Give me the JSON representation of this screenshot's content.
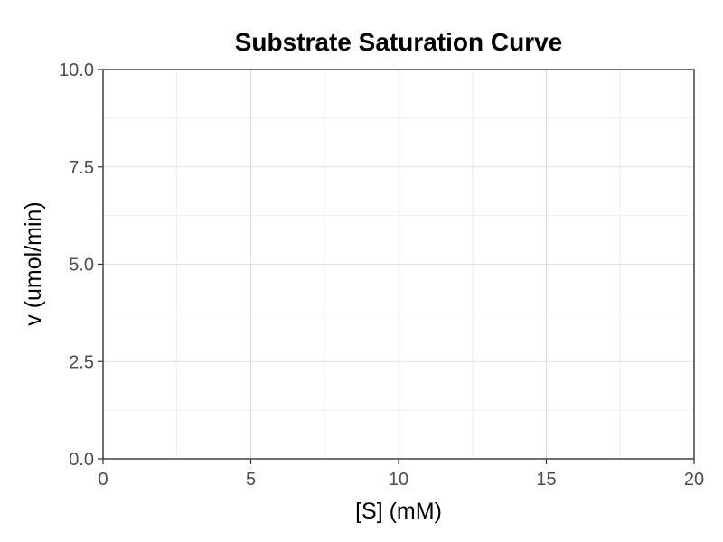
{
  "chart_data": {
    "type": "line",
    "title": "Substrate Saturation Curve",
    "xlabel": "[S] (mM)",
    "ylabel": "v (umol/min)",
    "xlim": [
      0,
      20
    ],
    "ylim": [
      0,
      10
    ],
    "x_ticks": [
      0,
      5,
      10,
      15,
      20
    ],
    "x_tick_labels": [
      "0",
      "5",
      "10",
      "15",
      "20"
    ],
    "y_ticks": [
      0,
      2.5,
      5,
      7.5,
      10
    ],
    "y_tick_labels": [
      "0.0",
      "2.5",
      "5.0",
      "7.5",
      "10.0"
    ],
    "x_minor_ticks": [
      2.5,
      7.5,
      12.5,
      17.5
    ],
    "y_minor_ticks": [
      1.25,
      3.75,
      6.25,
      8.75
    ],
    "grid": true,
    "series": []
  },
  "colors": {
    "background": "#ffffff",
    "panel_border": "#333333",
    "grid_major": "#e0e0e0",
    "grid_minor": "#efefef",
    "tick_label": "#4d4d4d",
    "title": "#000000"
  }
}
